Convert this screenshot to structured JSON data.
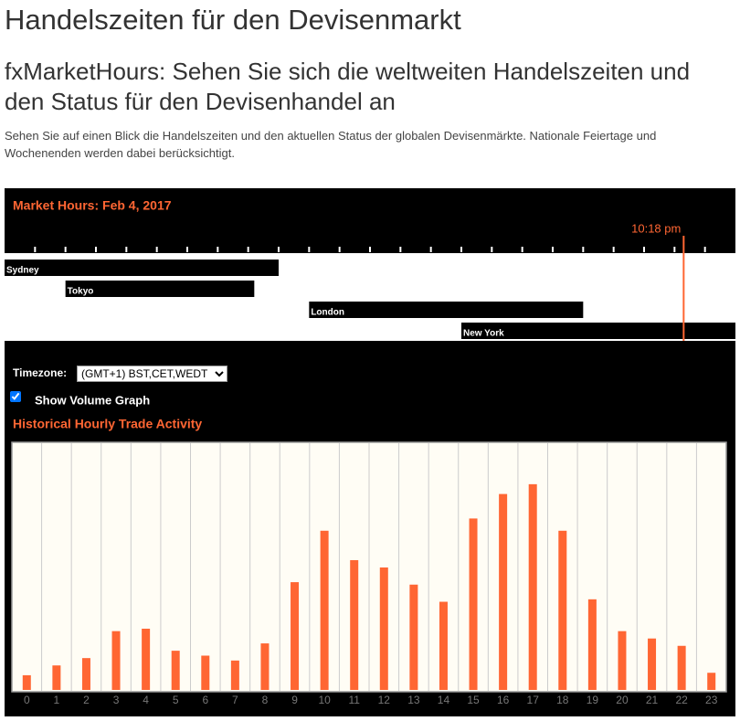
{
  "header": {
    "title": "Handelszeiten für den Devisenmarkt",
    "subtitle": "fxMarketHours: Sehen Sie sich die weltweiten Handelszeiten und den Status für den Devisenhandel an",
    "description": "Sehen Sie auf einen Blick die Handelszeiten und den aktuellen Status der globalen Devisenmärkte. Nationale Feiertage und Wochenenden werden dabei berücksichtigt."
  },
  "widget": {
    "title": "Market Hours: Feb 4, 2017",
    "current_time_label": "10:18 pm",
    "current_time": 22.3,
    "hour_range": [
      0,
      24
    ],
    "hour_ticks": [
      1,
      2,
      3,
      4,
      5,
      6,
      7,
      8,
      9,
      10,
      11,
      12,
      13,
      14,
      15,
      16,
      17,
      18,
      19,
      20,
      21,
      22,
      23
    ],
    "sessions": [
      {
        "name": "Sydney",
        "start": 0,
        "end": 9
      },
      {
        "name": "Tokyo",
        "start": 2,
        "end": 8.2
      },
      {
        "name": "London",
        "start": 10,
        "end": 19
      },
      {
        "name": "New York",
        "start": 15,
        "end": 24
      }
    ],
    "timezone_label": "Timezone:",
    "timezone_value": "(GMT+1) BST,CET,WEDT",
    "volume_checkbox": "Show Volume Graph",
    "volume_checked": true
  },
  "chart_data": {
    "type": "bar",
    "title": "Historical Hourly Trade Activity",
    "categories": [
      "0",
      "1",
      "2",
      "3",
      "4",
      "5",
      "6",
      "7",
      "8",
      "9",
      "10",
      "11",
      "12",
      "13",
      "14",
      "15",
      "16",
      "17",
      "18",
      "19",
      "20",
      "21",
      "22",
      "23"
    ],
    "values": [
      6,
      10,
      13,
      24,
      25,
      16,
      14,
      12,
      19,
      44,
      65,
      53,
      50,
      43,
      36,
      70,
      80,
      84,
      65,
      37,
      24,
      21,
      18,
      7
    ],
    "color": "#ff6633",
    "ylim": [
      0,
      100
    ]
  }
}
